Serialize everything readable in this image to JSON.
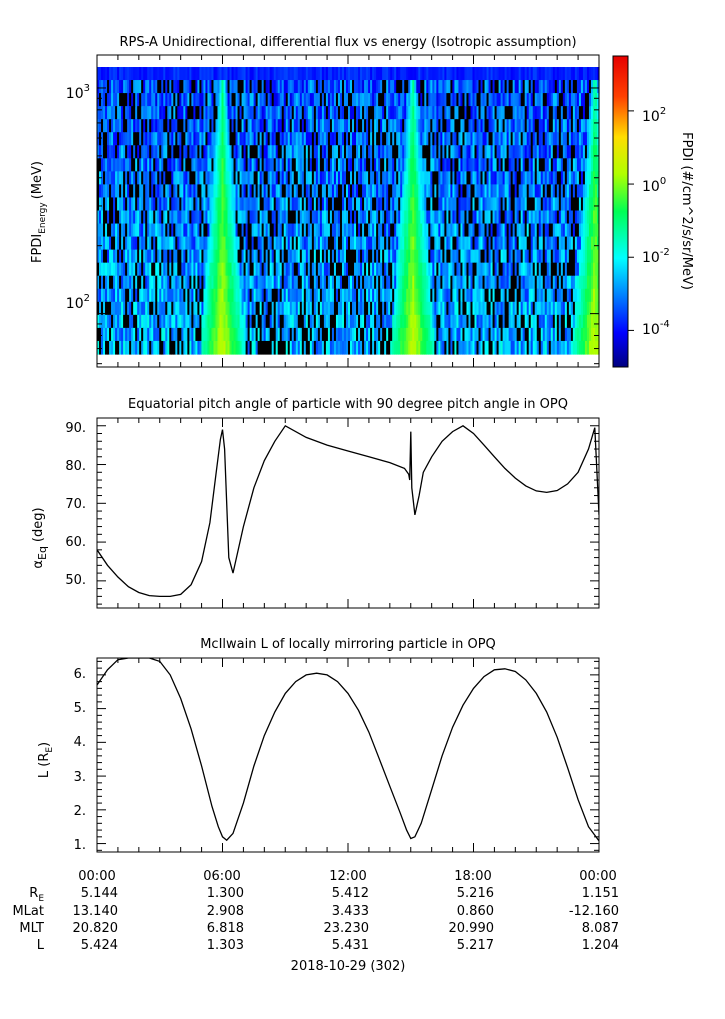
{
  "panel1": {
    "title": "RPS-A Unidirectional, differential flux vs energy (Isotropic assumption)",
    "ylabel_main": "FPDI",
    "ylabel_sub": "Energy",
    "ylabel_unit": "(MeV)",
    "yticks": [
      {
        "value": 1000,
        "base": "10",
        "exp": "3"
      },
      {
        "value": 100,
        "base": "10",
        "exp": "2"
      }
    ],
    "cbar_label": "FPDI (#/cm^2/s/sr/MeV)",
    "cbar_ticks": [
      {
        "value": 2,
        "base": "10",
        "exp": "2"
      },
      {
        "value": 0,
        "base": "10",
        "exp": "0"
      },
      {
        "value": -2,
        "base": "10",
        "exp": "-2"
      },
      {
        "value": -4,
        "base": "10",
        "exp": "-4"
      }
    ]
  },
  "panel2": {
    "title": "Equatorial pitch angle of particle with 90 degree pitch angle in OPQ",
    "ylabel_main": "α",
    "ylabel_sub": "Eq",
    "ylabel_unit": "(deg)",
    "yticks": [
      "90.",
      "80.",
      "70.",
      "60.",
      "50."
    ]
  },
  "panel3": {
    "title": "McIlwain L of locally mirroring particle in OPQ",
    "ylabel_main": "L (R",
    "ylabel_sub": "E",
    "ylabel_close": ")",
    "yticks": [
      "6.",
      "5.",
      "4.",
      "3.",
      "2.",
      "1."
    ]
  },
  "xaxis": {
    "tick_labels": [
      "00:00",
      "06:00",
      "12:00",
      "18:00",
      "00:00"
    ],
    "date_label": "2018-10-29 (302)"
  },
  "ephemeris": {
    "rows": [
      {
        "name": "R",
        "sub": "E",
        "values": [
          "5.144",
          "1.300",
          "5.412",
          "5.216",
          "1.151"
        ]
      },
      {
        "name": "MLat",
        "sub": "",
        "values": [
          "13.140",
          "2.908",
          "3.433",
          "0.860",
          "-12.160"
        ]
      },
      {
        "name": "MLT",
        "sub": "",
        "values": [
          "20.820",
          "6.818",
          "23.230",
          "20.990",
          "8.087"
        ]
      },
      {
        "name": "L",
        "sub": "",
        "values": [
          "5.424",
          "1.303",
          "5.431",
          "5.217",
          "1.204"
        ]
      }
    ]
  },
  "chart_data": [
    {
      "type": "heatmap",
      "title": "RPS-A Unidirectional, differential flux vs energy (Isotropic assumption)",
      "xlabel": "",
      "ylabel": "FPDI Energy (MeV)",
      "x_range_hours": [
        0,
        24
      ],
      "y_range_MeV": [
        58,
        1400
      ],
      "y_scale": "log",
      "colorbar": {
        "label": "FPDI (#/cm^2/s/sr/MeV)",
        "scale": "log",
        "range_log10": [
          -5,
          3.5
        ],
        "colormap": "jet"
      },
      "features": [
        {
          "description": "high-flux bands at belt passes",
          "center_hours": [
            6.0,
            15.1,
            23.8
          ],
          "peak_log10_flux": 0.5
        }
      ],
      "background_log10_flux": -3
    },
    {
      "type": "line",
      "title": "Equatorial pitch angle of particle with 90 degree pitch angle in OPQ",
      "xlabel": "",
      "ylabel": "αEq (deg)",
      "ylim": [
        43,
        92
      ],
      "x_hours": [
        0,
        0.5,
        1,
        1.5,
        2,
        2.5,
        3,
        3.5,
        4,
        4.5,
        5,
        5.4,
        5.7,
        5.9,
        6.0,
        6.1,
        6.3,
        6.5,
        7,
        7.5,
        8,
        8.5,
        9,
        10,
        11,
        12,
        13,
        14,
        14.7,
        14.9,
        14.95,
        15.0,
        15.05,
        15.2,
        15.4,
        15.6,
        16,
        16.5,
        17,
        17.5,
        18,
        18.5,
        19,
        19.5,
        20,
        20.5,
        21,
        21.5,
        22,
        22.5,
        23,
        23.5,
        23.8,
        24
      ],
      "series": [
        {
          "values": [
            58,
            54,
            51,
            48.5,
            47,
            46.2,
            46,
            46,
            46.5,
            49,
            55,
            65,
            78,
            86.5,
            89,
            84,
            56,
            52,
            64,
            74,
            81,
            86,
            90,
            87,
            85,
            83.5,
            82,
            80.5,
            79,
            77.5,
            76,
            88.5,
            74,
            67,
            72,
            78,
            82,
            86,
            88.5,
            90,
            88,
            85,
            82,
            79,
            76.5,
            74.5,
            73.2,
            72.8,
            73.3,
            75,
            78,
            84,
            89.5,
            67
          ]
        }
      ]
    },
    {
      "type": "line",
      "title": "McIlwain L of locally mirroring particle in OPQ",
      "xlabel": "",
      "ylabel": "L (RE)",
      "ylim": [
        0.75,
        6.5
      ],
      "x_hours": [
        0,
        0.5,
        1,
        1.5,
        2,
        2.5,
        3,
        3.5,
        4,
        4.5,
        5,
        5.5,
        5.8,
        6.0,
        6.2,
        6.5,
        7,
        7.5,
        8,
        8.5,
        9,
        9.5,
        10,
        10.5,
        11,
        11.5,
        12,
        12.5,
        13,
        13.5,
        14,
        14.5,
        14.8,
        15.0,
        15.2,
        15.5,
        16,
        16.5,
        17,
        17.5,
        18,
        18.5,
        19,
        19.5,
        20,
        20.5,
        21,
        21.5,
        22,
        22.5,
        23,
        23.5,
        24
      ],
      "series": [
        {
          "values": [
            5.7,
            6.15,
            6.45,
            6.5,
            6.5,
            6.5,
            6.4,
            6.0,
            5.3,
            4.4,
            3.3,
            2.1,
            1.5,
            1.2,
            1.1,
            1.3,
            2.2,
            3.3,
            4.2,
            4.9,
            5.45,
            5.8,
            6.0,
            6.05,
            6.0,
            5.8,
            5.45,
            4.95,
            4.3,
            3.5,
            2.7,
            1.9,
            1.4,
            1.15,
            1.2,
            1.6,
            2.6,
            3.6,
            4.45,
            5.1,
            5.6,
            5.95,
            6.15,
            6.18,
            6.1,
            5.85,
            5.45,
            4.9,
            4.15,
            3.25,
            2.3,
            1.5,
            1.08
          ]
        }
      ]
    }
  ]
}
